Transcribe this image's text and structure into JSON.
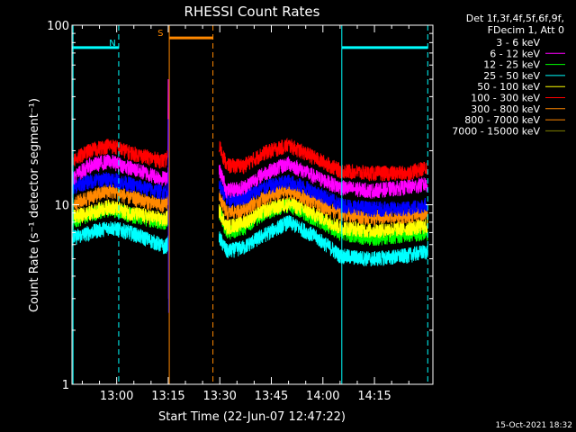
{
  "chart_data": {
    "type": "line",
    "title": "RHESSI Count Rates",
    "xlabel": "Start Time (22-Jun-07 12:47:22)",
    "ylabel": "Count Rate (s⁻¹ detector segment⁻¹)",
    "ylog": true,
    "ylim": [
      1,
      100
    ],
    "xlim_minutes": [
      47,
      152
    ],
    "x_ticks": [
      {
        "label": "13:00",
        "minute": 60
      },
      {
        "label": "13:15",
        "minute": 75
      },
      {
        "label": "13:30",
        "minute": 90
      },
      {
        "label": "13:45",
        "minute": 105
      },
      {
        "label": "14:00",
        "minute": 120
      },
      {
        "label": "14:15",
        "minute": 135
      }
    ],
    "y_ticks": [
      {
        "label": "1",
        "value": 1
      },
      {
        "label": "10",
        "value": 10
      },
      {
        "label": "100",
        "value": 100
      }
    ],
    "legend_header": [
      "Det 1f,3f,4f,5f,6f,9f,",
      "FDecim 1, Att 0"
    ],
    "legend_position": "outside-right",
    "series": [
      {
        "name": "3 - 6 keV",
        "color": "#ffffff",
        "plot_color": "#000000",
        "shape": [
          [
            47,
            5.0
          ],
          [
            52,
            7.2
          ],
          [
            58,
            7.5
          ],
          [
            64,
            6.5
          ],
          [
            71,
            5.5
          ],
          [
            74,
            5.2
          ],
          [
            75.2,
            5.5
          ]
        ],
        "post": [
          [
            90,
            5.0
          ],
          [
            92,
            3.5
          ],
          [
            97,
            4.0
          ],
          [
            103,
            5.5
          ],
          [
            110,
            7.0
          ],
          [
            117,
            5.5
          ],
          [
            125,
            3.8
          ],
          [
            134,
            3.8
          ],
          [
            144,
            4.2
          ],
          [
            150,
            5.2
          ]
        ]
      },
      {
        "name": "6 - 12 keV",
        "color": "#ff00ff",
        "shape": [
          [
            47,
            14.0
          ],
          [
            52,
            16.5
          ],
          [
            58,
            17.5
          ],
          [
            64,
            16.0
          ],
          [
            71,
            14.5
          ],
          [
            74,
            14.0
          ],
          [
            75.2,
            15.0
          ]
        ],
        "post": [
          [
            90,
            15.5
          ],
          [
            92,
            12.0
          ],
          [
            97,
            12.5
          ],
          [
            103,
            15.0
          ],
          [
            110,
            17.0
          ],
          [
            117,
            14.5
          ],
          [
            125,
            12.5
          ],
          [
            134,
            12.0
          ],
          [
            144,
            12.5
          ],
          [
            150,
            13.0
          ]
        ]
      },
      {
        "name": "12 - 25 keV",
        "color": "#00ff00",
        "shape": [
          [
            47,
            8.0
          ],
          [
            52,
            8.8
          ],
          [
            58,
            9.5
          ],
          [
            64,
            8.8
          ],
          [
            71,
            8.2
          ],
          [
            74,
            8.0
          ],
          [
            75.2,
            8.5
          ]
        ],
        "post": [
          [
            90,
            9.0
          ],
          [
            92,
            7.0
          ],
          [
            97,
            7.5
          ],
          [
            103,
            9.0
          ],
          [
            110,
            10.0
          ],
          [
            117,
            8.5
          ],
          [
            125,
            7.0
          ],
          [
            134,
            6.5
          ],
          [
            144,
            6.8
          ],
          [
            150,
            7.0
          ]
        ]
      },
      {
        "name": "25 - 50 keV",
        "color": "#00ffff",
        "shape": [
          [
            47,
            6.5
          ],
          [
            52,
            7.0
          ],
          [
            58,
            7.5
          ],
          [
            64,
            7.0
          ],
          [
            71,
            6.2
          ],
          [
            74,
            5.8
          ],
          [
            75.2,
            6.2
          ]
        ],
        "post": [
          [
            90,
            6.5
          ],
          [
            92,
            5.5
          ],
          [
            97,
            5.8
          ],
          [
            103,
            6.8
          ],
          [
            110,
            8.0
          ],
          [
            117,
            6.8
          ],
          [
            125,
            5.2
          ],
          [
            134,
            5.0
          ],
          [
            144,
            5.2
          ],
          [
            150,
            5.5
          ]
        ]
      },
      {
        "name": "50 - 100 keV",
        "color": "#ffff00",
        "shape": [
          [
            47,
            8.5
          ],
          [
            52,
            9.0
          ],
          [
            58,
            9.8
          ],
          [
            64,
            9.0
          ],
          [
            71,
            8.5
          ],
          [
            74,
            8.2
          ],
          [
            75.2,
            8.8
          ]
        ],
        "post": [
          [
            90,
            9.2
          ],
          [
            92,
            7.5
          ],
          [
            97,
            8.0
          ],
          [
            103,
            9.3
          ],
          [
            110,
            10.2
          ],
          [
            117,
            9.0
          ],
          [
            125,
            7.5
          ],
          [
            134,
            7.2
          ],
          [
            144,
            7.4
          ],
          [
            150,
            7.6
          ]
        ]
      },
      {
        "name": "100 - 300 keV",
        "color": "#ff0000",
        "shape": [
          [
            47,
            17.5
          ],
          [
            52,
            20.0
          ],
          [
            58,
            21.5
          ],
          [
            64,
            19.5
          ],
          [
            71,
            18.0
          ],
          [
            74,
            17.5
          ],
          [
            75.2,
            19.0
          ]
        ],
        "post": [
          [
            90,
            21.0
          ],
          [
            92,
            16.5
          ],
          [
            97,
            16.5
          ],
          [
            103,
            19.5
          ],
          [
            110,
            21.5
          ],
          [
            117,
            18.5
          ],
          [
            125,
            15.5
          ],
          [
            134,
            15.0
          ],
          [
            144,
            15.0
          ],
          [
            150,
            16.0
          ]
        ]
      },
      {
        "name": "300 - 800 keV",
        "color": "#ff8800",
        "shape": [
          [
            47,
            10.0
          ],
          [
            52,
            11.0
          ],
          [
            58,
            12.0
          ],
          [
            64,
            11.0
          ],
          [
            71,
            10.2
          ],
          [
            74,
            10.0
          ],
          [
            75.2,
            10.8
          ]
        ],
        "post": [
          [
            90,
            11.0
          ],
          [
            92,
            9.0
          ],
          [
            97,
            9.5
          ],
          [
            103,
            11.0
          ],
          [
            110,
            12.0
          ],
          [
            117,
            10.5
          ],
          [
            125,
            9.0
          ],
          [
            134,
            8.5
          ],
          [
            144,
            8.7
          ],
          [
            150,
            9.0
          ]
        ]
      },
      {
        "name": "800 - 7000 keV",
        "color": "#ff8800",
        "plot_color": "#ff8800",
        "shape": [],
        "post": []
      },
      {
        "name": "7000 - 15000 keV",
        "color": "#808000",
        "plot_color": "#808000",
        "shape": [],
        "post": []
      },
      {
        "name": "Det blue band",
        "color": "#0000ff",
        "legend": false,
        "shape": [
          [
            47,
            12.5
          ],
          [
            52,
            13.5
          ],
          [
            58,
            14.0
          ],
          [
            64,
            13.0
          ],
          [
            71,
            12.0
          ],
          [
            74,
            11.8
          ],
          [
            75.2,
            12.5
          ]
        ],
        "post": [
          [
            90,
            13.0
          ],
          [
            92,
            10.5
          ],
          [
            97,
            11.0
          ],
          [
            103,
            12.5
          ],
          [
            110,
            13.5
          ],
          [
            117,
            12.0
          ],
          [
            125,
            10.0
          ],
          [
            134,
            9.5
          ],
          [
            144,
            9.5
          ],
          [
            150,
            10.0
          ]
        ]
      }
    ],
    "flag_bars": [
      {
        "label": "N",
        "color": "#00ffff",
        "x_start": 47,
        "x_end": 60.6,
        "y": 75
      },
      {
        "label": "S",
        "color": "#ff8800",
        "x_start": 75.3,
        "x_end": 88,
        "y": 85
      },
      {
        "label": "",
        "color": "#00ffff",
        "x_start": 125.5,
        "x_end": 150.5,
        "y": 75
      }
    ],
    "vertical_lines": [
      {
        "color": "#00ffff",
        "minute": 47.3,
        "style": "solid"
      },
      {
        "color": "#00ffff",
        "minute": 60.6,
        "style": "dashed"
      },
      {
        "color": "#ff8800",
        "minute": 75.3,
        "style": "solid"
      },
      {
        "color": "#ff8800",
        "minute": 88.0,
        "style": "dashed"
      },
      {
        "color": "#00ffff",
        "minute": 125.5,
        "style": "solid"
      },
      {
        "color": "#00ffff",
        "minute": 150.5,
        "style": "dashed"
      }
    ]
  },
  "footer_timestamp": "15-Oct-2021 18:32"
}
